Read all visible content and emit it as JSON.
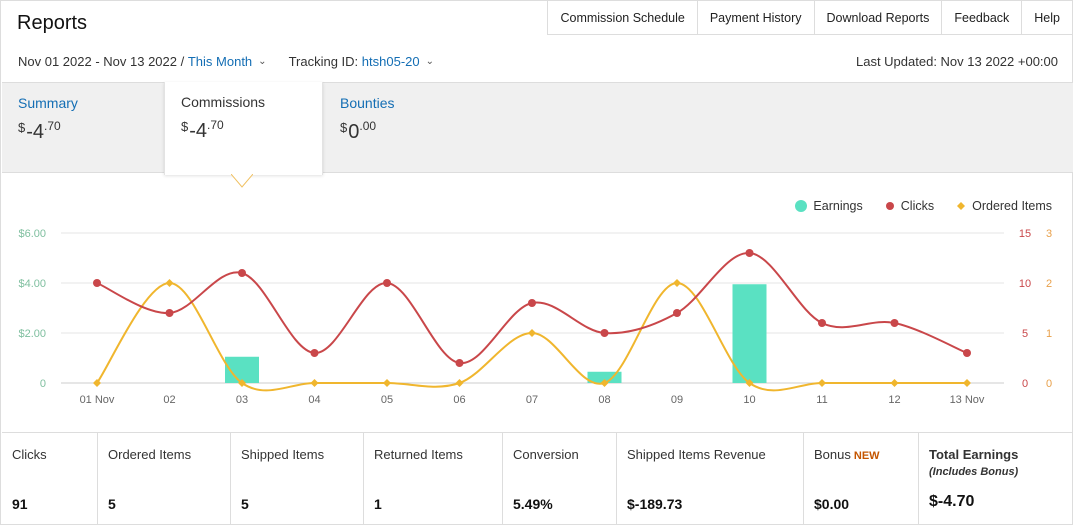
{
  "page": {
    "title": "Reports"
  },
  "topnav": [
    "Commission Schedule",
    "Payment History",
    "Download Reports",
    "Feedback",
    "Help"
  ],
  "filters": {
    "date_range": "Nov 01 2022 - Nov 13 2022 /",
    "period": "This Month",
    "tracking_label": "Tracking ID:",
    "tracking_id": "htsh05-20",
    "last_updated": "Last Updated: Nov 13 2022 +00:00"
  },
  "tabs": [
    {
      "label": "Summary",
      "dollar": "$",
      "whole": "-4",
      "cents": ".70",
      "active": false
    },
    {
      "label": "Commissions",
      "dollar": "$",
      "whole": "-4",
      "cents": ".70",
      "active": true
    },
    {
      "label": "Bounties",
      "dollar": "$",
      "whole": "0",
      "cents": ".00",
      "active": false
    }
  ],
  "legend": [
    {
      "name": "Earnings",
      "color": "#5ae1c2",
      "shape": "circle"
    },
    {
      "name": "Clicks",
      "color": "#c9474a",
      "shape": "circle"
    },
    {
      "name": "Ordered Items",
      "color": "#f0b62e",
      "shape": "diamond"
    }
  ],
  "chart_data": {
    "type": "bar",
    "categories": [
      "01 Nov",
      "02",
      "03",
      "04",
      "05",
      "06",
      "07",
      "08",
      "09",
      "10",
      "11",
      "12",
      "13 Nov"
    ],
    "left_axis": {
      "ticks": [
        "0",
        "$2.00",
        "$4.00",
        "$6.00"
      ],
      "max": 6,
      "color": "#7fbf9f"
    },
    "right_axis_1": {
      "ticks": [
        "0",
        "5",
        "10",
        "15"
      ],
      "max": 15,
      "color": "#c9474a"
    },
    "right_axis_2": {
      "ticks": [
        "0",
        "1",
        "2",
        "3"
      ],
      "max": 3,
      "color": "#e8a04a"
    },
    "series": [
      {
        "name": "Earnings",
        "kind": "bar",
        "axis": "left",
        "color": "#5ae1c2",
        "values": [
          0,
          0,
          1.05,
          0,
          0,
          0,
          0,
          0.45,
          0,
          3.95,
          0,
          0,
          0
        ]
      },
      {
        "name": "Clicks",
        "kind": "line",
        "axis": "right_1",
        "color": "#c9474a",
        "values": [
          10,
          7,
          11,
          3,
          10,
          2,
          8,
          5,
          7,
          13,
          6,
          6,
          3
        ]
      },
      {
        "name": "Ordered Items",
        "kind": "line",
        "axis": "right_2",
        "color": "#f0b62e",
        "values": [
          0,
          2,
          0,
          0,
          0,
          0,
          1,
          0,
          2,
          0,
          0,
          0,
          0
        ]
      }
    ],
    "grid": true
  },
  "stats": [
    {
      "label": "Clicks",
      "value": "91"
    },
    {
      "label": "Ordered Items",
      "value": "5"
    },
    {
      "label": "Shipped Items",
      "value": "5"
    },
    {
      "label": "Returned Items",
      "value": "1"
    },
    {
      "label": "Conversion",
      "value": "5.49%"
    },
    {
      "label": "Shipped Items Revenue",
      "value": "$-189.73"
    },
    {
      "label": "Bonus",
      "badge": "NEW",
      "value": "$0.00"
    },
    {
      "label": "Total Earnings",
      "sub": "(Includes Bonus)",
      "value": "$-4.70"
    }
  ]
}
